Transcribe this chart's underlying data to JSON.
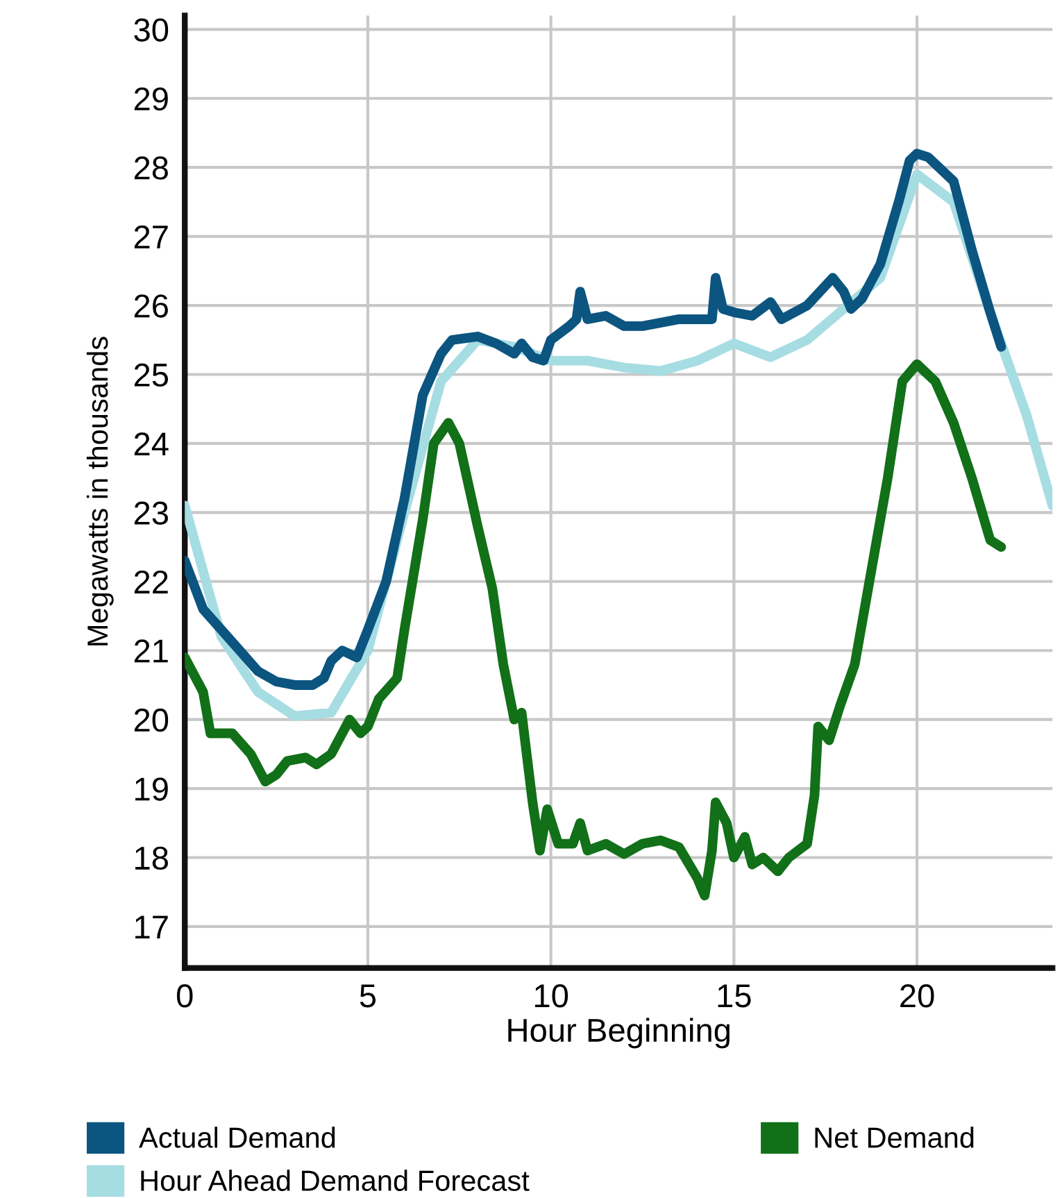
{
  "chart_data": {
    "type": "line",
    "xlabel": "Hour Beginning",
    "ylabel": "Megawatts in thousands",
    "xlim": [
      0,
      23.7
    ],
    "xticks": [
      0,
      5,
      10,
      15,
      20
    ],
    "ylim": [
      16.4,
      30.2
    ],
    "yticks": [
      17,
      18,
      19,
      20,
      21,
      22,
      23,
      24,
      25,
      26,
      27,
      28,
      29,
      30
    ],
    "grid": true,
    "legend": "bottom",
    "marker": "none",
    "line_style": "solid",
    "series": [
      {
        "name": "Actual Demand",
        "color": "#0b5580",
        "x": [
          0,
          0.5,
          1,
          1.5,
          2,
          2.5,
          3,
          3.5,
          3.8,
          4,
          4.3,
          4.7,
          5,
          5.5,
          6,
          6.5,
          7,
          7.3,
          8,
          8.5,
          9,
          9.2,
          9.5,
          9.8,
          10,
          10.5,
          10.7,
          10.8,
          11,
          11.5,
          12,
          12.5,
          13,
          13.5,
          14,
          14.4,
          14.5,
          14.7,
          15,
          15.5,
          16,
          16.3,
          17,
          17.7,
          18,
          18.2,
          18.5,
          19,
          19.5,
          19.8,
          20,
          20.3,
          21,
          21.5,
          22,
          22.3
        ],
        "values": [
          22.3,
          21.6,
          21.3,
          21.0,
          20.7,
          20.55,
          20.5,
          20.5,
          20.6,
          20.85,
          21.0,
          20.9,
          21.3,
          22.0,
          23.2,
          24.7,
          25.3,
          25.5,
          25.55,
          25.45,
          25.3,
          25.45,
          25.25,
          25.2,
          25.5,
          25.7,
          25.8,
          26.2,
          25.8,
          25.85,
          25.7,
          25.7,
          25.75,
          25.8,
          25.8,
          25.8,
          26.4,
          25.95,
          25.9,
          25.85,
          26.05,
          25.8,
          26.0,
          26.4,
          26.2,
          25.95,
          26.1,
          26.6,
          27.5,
          28.1,
          28.2,
          28.15,
          27.8,
          26.8,
          25.9,
          25.4
        ]
      },
      {
        "name": "Net Demand",
        "color": "#117018",
        "x": [
          0,
          0.5,
          0.7,
          1.3,
          1.8,
          2.2,
          2.5,
          2.8,
          3.3,
          3.6,
          4,
          4.5,
          4.8,
          5,
          5.3,
          5.8,
          6,
          6.5,
          6.8,
          7.2,
          7.5,
          8,
          8.4,
          8.7,
          9,
          9.2,
          9.5,
          9.7,
          9.9,
          10.2,
          10.6,
          10.8,
          11,
          11.5,
          12,
          12.5,
          13,
          13.5,
          14,
          14.2,
          14.4,
          14.5,
          14.8,
          15,
          15.3,
          15.5,
          15.8,
          16.2,
          16.5,
          17,
          17.2,
          17.3,
          17.6,
          17.9,
          18.3,
          18.8,
          19.2,
          19.6,
          20,
          20.5,
          21,
          21.5,
          22,
          22.3
        ],
        "values": [
          20.9,
          20.4,
          19.8,
          19.8,
          19.5,
          19.1,
          19.2,
          19.4,
          19.45,
          19.35,
          19.5,
          20.0,
          19.8,
          19.9,
          20.3,
          20.6,
          21.3,
          22.9,
          24.0,
          24.3,
          24.0,
          22.8,
          21.9,
          20.8,
          20.0,
          20.1,
          18.8,
          18.1,
          18.7,
          18.2,
          18.2,
          18.5,
          18.1,
          18.2,
          18.05,
          18.2,
          18.25,
          18.15,
          17.7,
          17.45,
          18.1,
          18.8,
          18.5,
          18.0,
          18.3,
          17.9,
          18.0,
          17.8,
          18.0,
          18.2,
          18.9,
          19.9,
          19.7,
          20.2,
          20.8,
          22.3,
          23.5,
          24.9,
          25.15,
          24.9,
          24.3,
          23.5,
          22.6,
          22.5
        ]
      },
      {
        "name": "Hour Ahead Demand Forecast",
        "color": "#a6dde3",
        "x": [
          0,
          1,
          2,
          3,
          4,
          5,
          6,
          7,
          8,
          9,
          10,
          11,
          12,
          13,
          14,
          15,
          16,
          17,
          18,
          19,
          20,
          21,
          22,
          23,
          23.7
        ],
        "values": [
          23.1,
          21.2,
          20.4,
          20.05,
          20.1,
          21.0,
          23.0,
          24.9,
          25.5,
          25.4,
          25.2,
          25.2,
          25.1,
          25.05,
          25.2,
          25.45,
          25.25,
          25.5,
          25.95,
          26.4,
          27.9,
          27.5,
          25.9,
          24.4,
          23.1
        ]
      }
    ]
  }
}
